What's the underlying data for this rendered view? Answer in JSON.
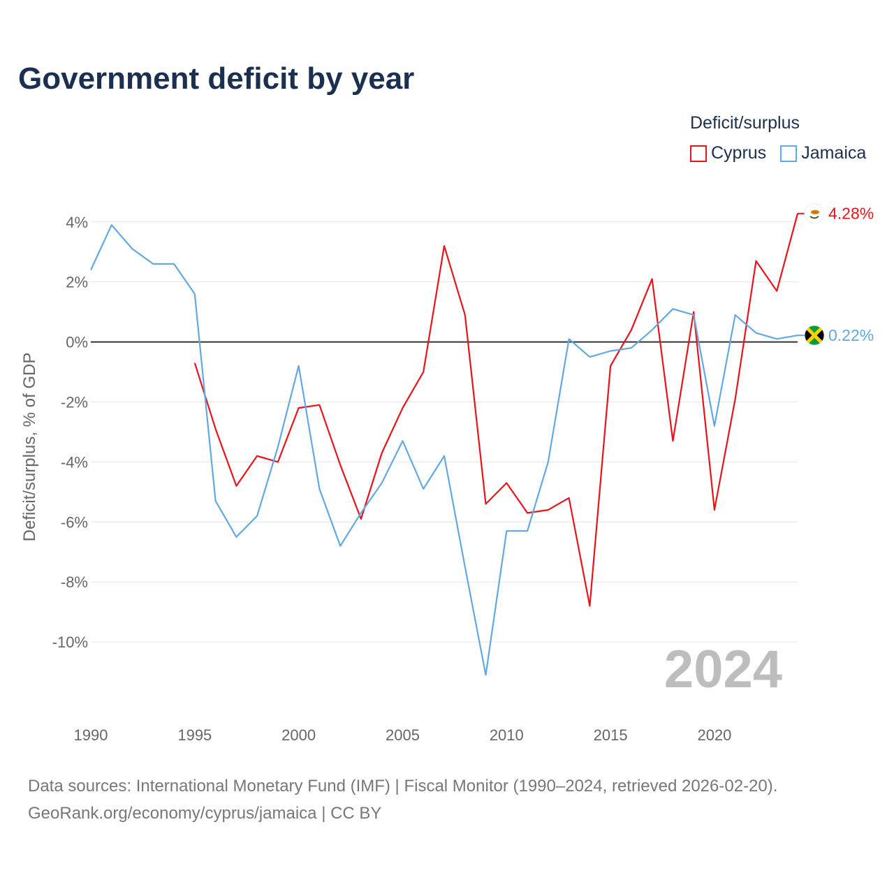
{
  "title": "Government deficit by year",
  "legend": {
    "title": "Deficit/surplus"
  },
  "source": {
    "line1": "Data sources: International Monetary Fund (IMF) | Fiscal Monitor (1990–2024, retrieved 2026-02-20).",
    "line2": "GeoRank.org/economy/cyprus/jamaica | CC BY"
  },
  "chart_data": {
    "type": "line",
    "title": "Government deficit by year",
    "xlabel": "",
    "ylabel": "Deficit/surplus, % of GDP",
    "xlim": [
      1990,
      2024
    ],
    "ylim": [
      -12,
      4.6
    ],
    "x_ticks": [
      1990,
      1995,
      2000,
      2005,
      2010,
      2015,
      2020
    ],
    "x_tick_labels": [
      "1990",
      "1995",
      "2000",
      "2005",
      "2010",
      "2015",
      "2020"
    ],
    "y_ticks": [
      4,
      2,
      0,
      -2,
      -4,
      -6,
      -8,
      -10
    ],
    "y_tick_labels": [
      "4%",
      "2%",
      "0%",
      "-2%",
      "-4%",
      "-6%",
      "-8%",
      "-10%"
    ],
    "grid": true,
    "legend_position": "top-right",
    "current_year_label": "2024",
    "series": [
      {
        "name": "Cyprus",
        "color": "#e8141b",
        "x": [
          1995,
          1996,
          1997,
          1998,
          1999,
          2000,
          2001,
          2002,
          2003,
          2004,
          2005,
          2006,
          2007,
          2008,
          2009,
          2010,
          2011,
          2012,
          2013,
          2014,
          2015,
          2016,
          2017,
          2018,
          2019,
          2020,
          2021,
          2022,
          2023,
          2024
        ],
        "values": [
          -0.7,
          -2.9,
          -4.8,
          -3.8,
          -4.0,
          -2.2,
          -2.1,
          -4.1,
          -5.9,
          -3.7,
          -2.2,
          -1.0,
          3.2,
          0.9,
          -5.4,
          -4.7,
          -5.7,
          -5.6,
          -5.2,
          -8.8,
          -0.8,
          0.4,
          2.1,
          -3.3,
          1.0,
          -5.6,
          -1.9,
          2.7,
          1.7,
          4.28
        ],
        "end_label": "4.28%",
        "flag": "cyprus-flag-icon"
      },
      {
        "name": "Jamaica",
        "color": "#63a8e3",
        "x": [
          1990,
          1991,
          1992,
          1993,
          1994,
          1995,
          1996,
          1997,
          1998,
          1999,
          2000,
          2001,
          2002,
          2003,
          2004,
          2005,
          2006,
          2007,
          2008,
          2009,
          2010,
          2011,
          2012,
          2013,
          2014,
          2015,
          2016,
          2017,
          2018,
          2019,
          2020,
          2021,
          2022,
          2023,
          2024
        ],
        "values": [
          2.4,
          3.9,
          3.1,
          2.6,
          2.6,
          1.6,
          -5.3,
          -6.5,
          -5.8,
          -3.5,
          -0.8,
          -4.9,
          -6.8,
          -5.7,
          -4.7,
          -3.3,
          -4.9,
          -3.8,
          -7.5,
          -11.1,
          -6.3,
          -6.3,
          -4.0,
          0.1,
          -0.5,
          -0.3,
          -0.2,
          0.4,
          1.1,
          0.9,
          -2.8,
          0.9,
          0.3,
          0.1,
          0.22
        ],
        "end_label": "0.22%",
        "flag": "jamaica-flag-icon"
      }
    ]
  }
}
